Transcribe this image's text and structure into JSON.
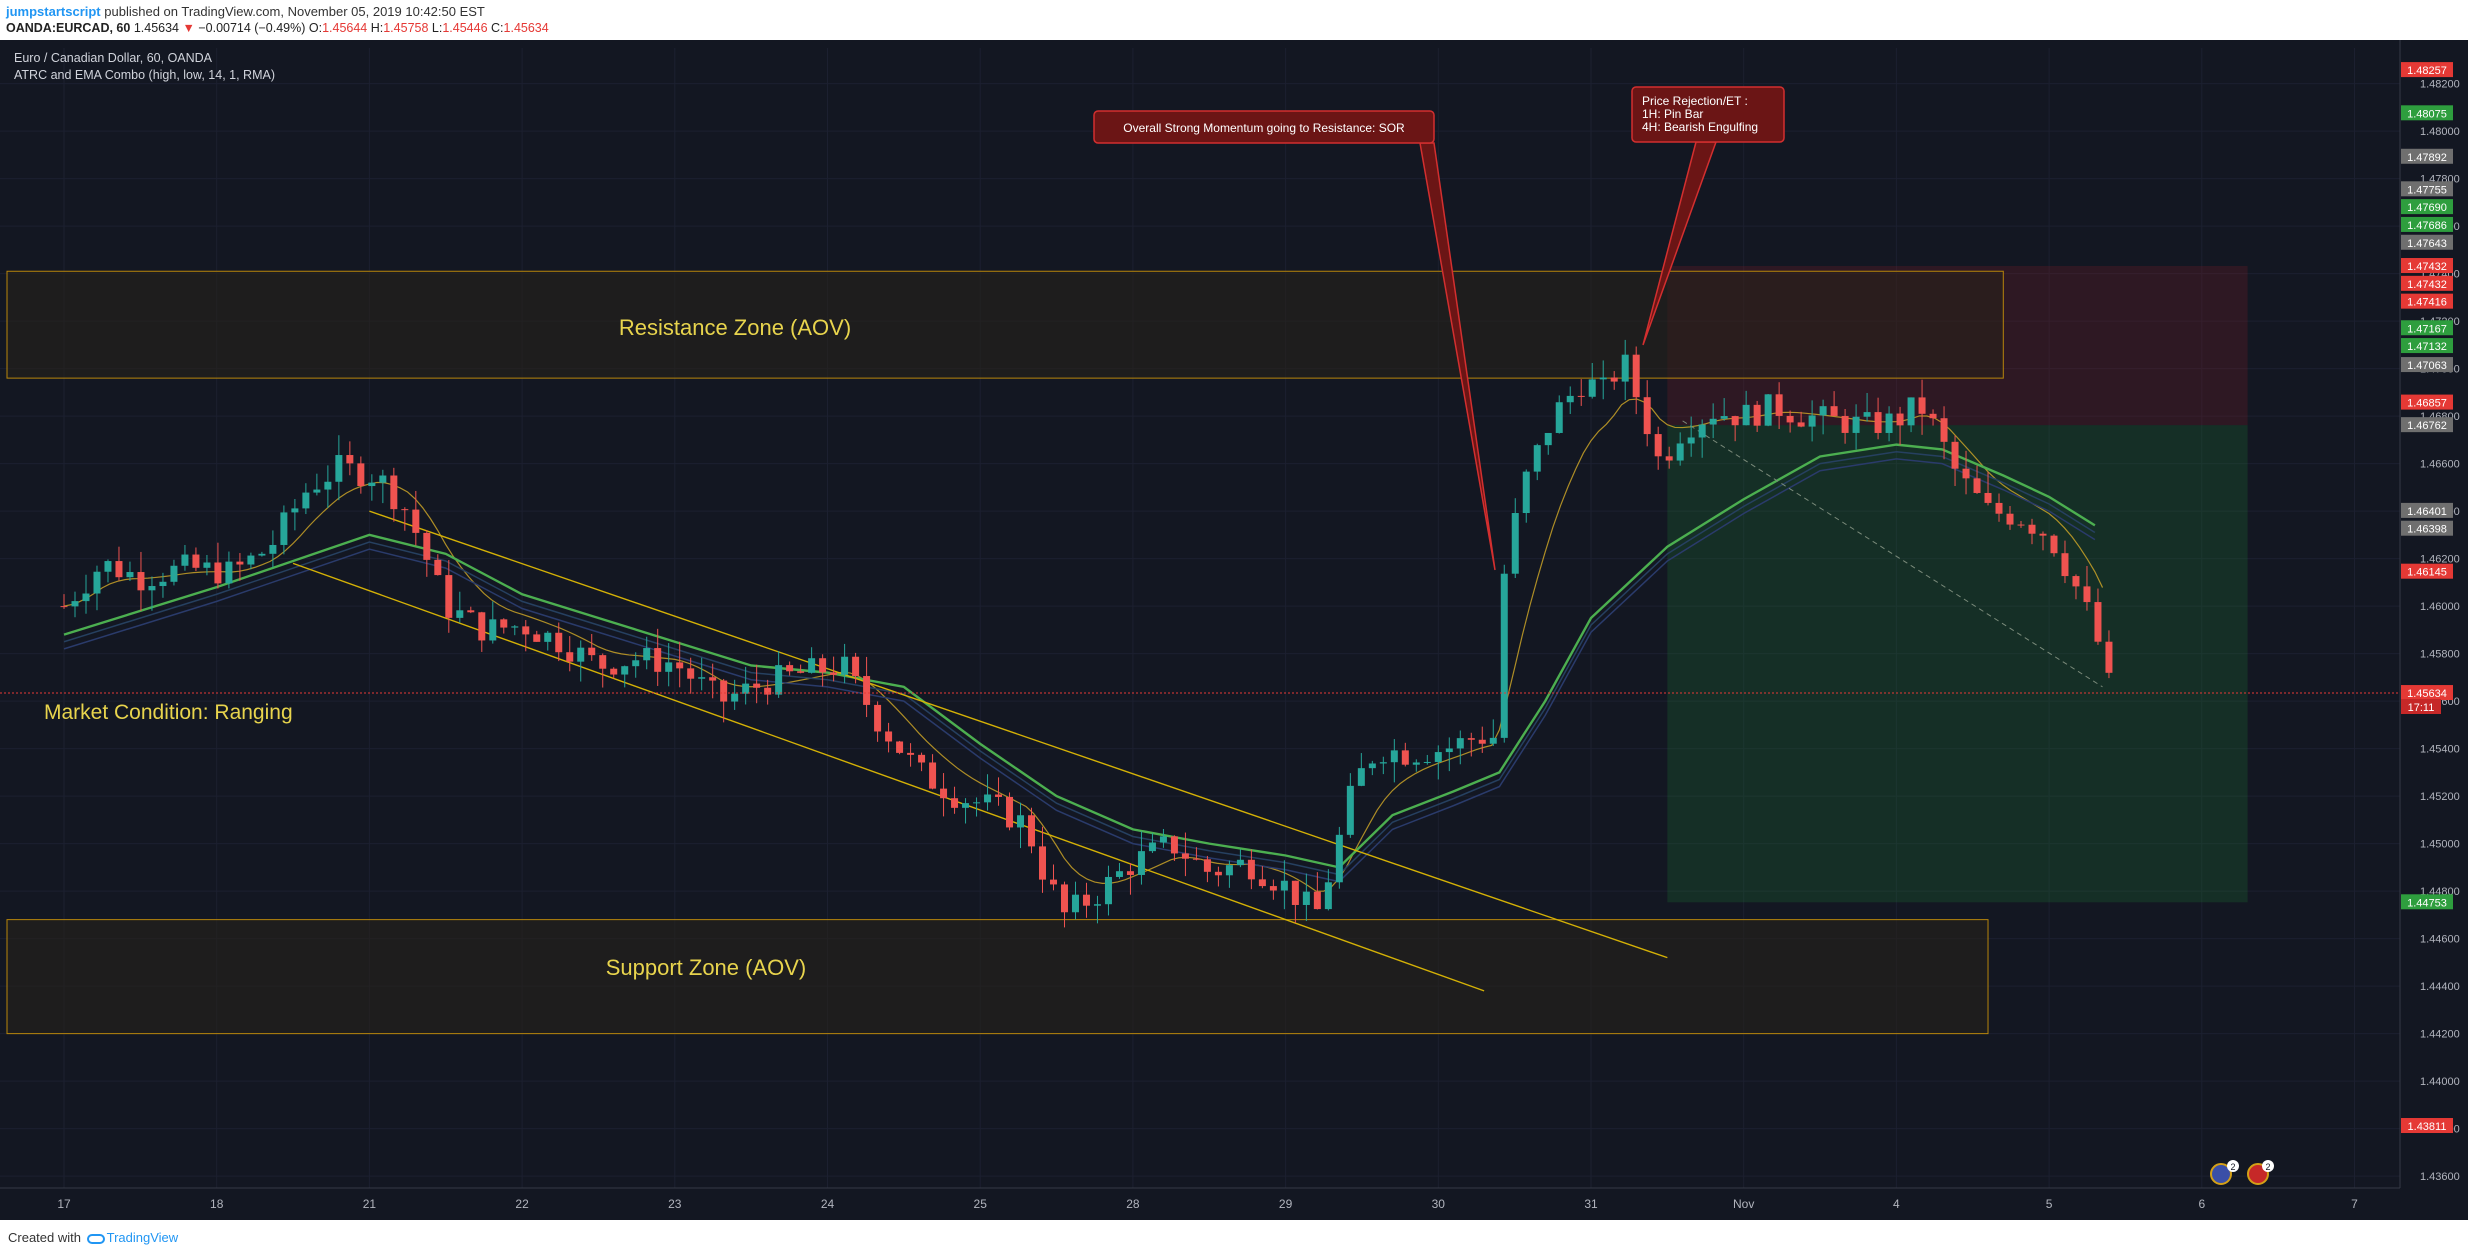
{
  "header": {
    "author": "jumpstartscript",
    "published_text": "published on TradingView.com, November 05, 2019 10:42:50 EST",
    "symbol": "OANDA:EURCAD, 60",
    "last_price": "1.45634",
    "change_arrow": "▼",
    "change": "−0.00714 (−0.49%)",
    "o_label": "O:",
    "o_value": "1.45644",
    "h_label": "H:",
    "h_value": "1.45758",
    "l_label": "L:",
    "l_value": "1.45446",
    "c_label": "C:",
    "c_value": "1.45634"
  },
  "legend": {
    "title": "Euro / Canadian Dollar, 60, OANDA",
    "indicator": "ATRC and EMA Combo (high, low, 14, 1, RMA)"
  },
  "zones": {
    "resistance": "Resistance Zone (AOV)",
    "support": "Support Zone (AOV)",
    "market_condition": "Market Condition: Ranging"
  },
  "callouts": {
    "momentum": "Overall Strong Momentum going to Resistance: SOR",
    "rejection_title": "Price Rejection/ET :",
    "rejection_1h": "1H: Pin Bar",
    "rejection_4h": "4H: Bearish Engulfing"
  },
  "countdown": "17:11",
  "badges": {
    "ideas_count": "2",
    "alerts_count": "2"
  },
  "footer": {
    "created_with": "Created with",
    "brand": "TradingView"
  },
  "colors": {
    "background": "#131722",
    "bull": "#26a69a",
    "bear": "#ef5350",
    "ema": "#4caf50",
    "trendline": "#d4b106",
    "zone_border": "#b8860b",
    "zone_text": "#e8d44d",
    "callout_fill": "#6b1515",
    "callout_border": "#d32f2f"
  },
  "chart_data": {
    "type": "candlestick",
    "symbol": "EURCAD",
    "timeframe": "60",
    "ylim": [
      1.4355,
      1.4835
    ],
    "y_ticks": [
      1.482,
      1.48,
      1.478,
      1.476,
      1.474,
      1.472,
      1.47,
      1.468,
      1.466,
      1.464,
      1.462,
      1.46,
      1.458,
      1.456,
      1.454,
      1.452,
      1.45,
      1.448,
      1.446,
      1.444,
      1.442,
      1.44,
      1.438,
      1.436
    ],
    "y_tick_labels": [
      "1.48200",
      "1.48000",
      "1.47800",
      "1.47600",
      "1.47400",
      "1.47200",
      "1.47000",
      "1.46800",
      "1.46600",
      "1.46400",
      "1.46200",
      "1.46000",
      "1.45800",
      "1.45600",
      "1.45400",
      "1.45200",
      "1.45000",
      "1.44800",
      "1.44600",
      "1.44400",
      "1.44200",
      "1.44000",
      "1.43800",
      "1.43600"
    ],
    "x_ticks": [
      {
        "label": "17",
        "day": 0
      },
      {
        "label": "18",
        "day": 1
      },
      {
        "label": "21",
        "day": 2
      },
      {
        "label": "22",
        "day": 3
      },
      {
        "label": "23",
        "day": 4
      },
      {
        "label": "24",
        "day": 5
      },
      {
        "label": "25",
        "day": 6
      },
      {
        "label": "28",
        "day": 7
      },
      {
        "label": "29",
        "day": 8
      },
      {
        "label": "30",
        "day": 9
      },
      {
        "label": "31",
        "day": 10
      },
      {
        "label": "Nov",
        "day": 11
      },
      {
        "label": "4",
        "day": 12
      },
      {
        "label": "5",
        "day": 13
      },
      {
        "label": "6",
        "day": 14
      },
      {
        "label": "7",
        "day": 15
      }
    ],
    "price_path": [
      [
        0.0,
        1.46
      ],
      [
        0.25,
        1.4618
      ],
      [
        0.5,
        1.4612
      ],
      [
        0.8,
        1.4616
      ],
      [
        1.1,
        1.4614
      ],
      [
        1.35,
        1.4625
      ],
      [
        1.6,
        1.465
      ],
      [
        1.8,
        1.4658
      ],
      [
        2.05,
        1.4655
      ],
      [
        2.25,
        1.464
      ],
      [
        2.5,
        1.46
      ],
      [
        2.75,
        1.459
      ],
      [
        3.0,
        1.4592
      ],
      [
        3.25,
        1.4585
      ],
      [
        3.5,
        1.4575
      ],
      [
        3.75,
        1.4578
      ],
      [
        4.0,
        1.4576
      ],
      [
        4.3,
        1.456
      ],
      [
        4.6,
        1.4568
      ],
      [
        4.85,
        1.4572
      ],
      [
        5.1,
        1.4575
      ],
      [
        5.35,
        1.455
      ],
      [
        5.6,
        1.453
      ],
      [
        5.85,
        1.452
      ],
      [
        6.1,
        1.4515
      ],
      [
        6.3,
        1.4508
      ],
      [
        6.4,
        1.449
      ],
      [
        6.55,
        1.447
      ],
      [
        6.75,
        1.4478
      ],
      [
        7.0,
        1.4492
      ],
      [
        7.25,
        1.45
      ],
      [
        7.5,
        1.4488
      ],
      [
        7.75,
        1.4492
      ],
      [
        8.0,
        1.4482
      ],
      [
        8.2,
        1.447
      ],
      [
        8.3,
        1.449
      ],
      [
        8.45,
        1.4525
      ],
      [
        8.6,
        1.454
      ],
      [
        8.8,
        1.4538
      ],
      [
        9.05,
        1.454
      ],
      [
        9.25,
        1.4545
      ],
      [
        9.38,
        1.4545
      ],
      [
        9.42,
        1.461
      ],
      [
        9.55,
        1.465
      ],
      [
        9.75,
        1.468
      ],
      [
        9.95,
        1.4695
      ],
      [
        10.1,
        1.469
      ],
      [
        10.2,
        1.4705
      ],
      [
        10.35,
        1.468
      ],
      [
        10.45,
        1.466
      ],
      [
        10.6,
        1.4675
      ],
      [
        10.8,
        1.4682
      ],
      [
        11.0,
        1.468
      ],
      [
        11.2,
        1.4684
      ],
      [
        11.4,
        1.468
      ],
      [
        11.6,
        1.4678
      ],
      [
        11.8,
        1.4676
      ],
      [
        12.0,
        1.4678
      ],
      [
        12.15,
        1.4685
      ],
      [
        12.25,
        1.4675
      ],
      [
        12.4,
        1.4655
      ],
      [
        12.6,
        1.464
      ],
      [
        12.8,
        1.4638
      ],
      [
        13.0,
        1.463
      ],
      [
        13.15,
        1.4612
      ],
      [
        13.3,
        1.459
      ],
      [
        13.4,
        1.4565
      ]
    ],
    "ema_slow": [
      [
        0.0,
        1.4588
      ],
      [
        1.0,
        1.4608
      ],
      [
        2.0,
        1.463
      ],
      [
        2.5,
        1.4622
      ],
      [
        3.0,
        1.4605
      ],
      [
        3.5,
        1.4595
      ],
      [
        4.0,
        1.4585
      ],
      [
        4.5,
        1.4575
      ],
      [
        5.0,
        1.4572
      ],
      [
        5.5,
        1.4566
      ],
      [
        6.0,
        1.4542
      ],
      [
        6.5,
        1.452
      ],
      [
        7.0,
        1.4506
      ],
      [
        7.5,
        1.45
      ],
      [
        8.0,
        1.4495
      ],
      [
        8.35,
        1.449
      ],
      [
        8.7,
        1.4512
      ],
      [
        9.1,
        1.4522
      ],
      [
        9.4,
        1.453
      ],
      [
        9.7,
        1.456
      ],
      [
        10.0,
        1.4595
      ],
      [
        10.5,
        1.4625
      ],
      [
        11.0,
        1.4645
      ],
      [
        11.5,
        1.4663
      ],
      [
        12.0,
        1.4668
      ],
      [
        12.3,
        1.4666
      ],
      [
        12.7,
        1.4655
      ],
      [
        13.0,
        1.4646
      ],
      [
        13.3,
        1.4634
      ]
    ],
    "resistance_zone": {
      "from_day": 0.0,
      "to_day": 12.7,
      "y_top": 1.4741,
      "y_bottom": 1.4696
    },
    "support_zone": {
      "from_day": 0.0,
      "to_day": 12.6,
      "y_top": 1.4468,
      "y_bottom": 1.442
    },
    "trendlines": [
      {
        "from": [
          2.0,
          1.464
        ],
        "to": [
          10.5,
          1.4452
        ]
      },
      {
        "from": [
          1.5,
          1.4618
        ],
        "to": [
          9.3,
          1.4438
        ]
      }
    ],
    "position": {
      "from_day": 10.5,
      "to_day": 14.3,
      "entry": 1.46762,
      "stop": 1.47432,
      "target": 1.44753
    },
    "price_labels": [
      {
        "value": "1.48257",
        "y": 1.48257,
        "color": "#e53935"
      },
      {
        "value": "1.48075",
        "y": 1.48075,
        "color": "#2e9e3e"
      },
      {
        "value": "1.47892",
        "y": 1.47892,
        "color": "#6f6f6f"
      },
      {
        "value": "1.47755",
        "y": 1.47755,
        "color": "#6f6f6f"
      },
      {
        "value": "1.47690",
        "y": 1.4768,
        "color": "#2e9e3e"
      },
      {
        "value": "1.47686",
        "y": 1.47605,
        "color": "#2e9e3e"
      },
      {
        "value": "1.47643",
        "y": 1.4753,
        "color": "#6f6f6f"
      },
      {
        "value": "1.47432",
        "y": 1.47432,
        "color": "#e53935"
      },
      {
        "value": "1.47432",
        "y": 1.47357,
        "color": "#e53935"
      },
      {
        "value": "1.47416",
        "y": 1.47282,
        "color": "#e53935"
      },
      {
        "value": "1.47167",
        "y": 1.4717,
        "color": "#2e9e3e"
      },
      {
        "value": "1.47132",
        "y": 1.47095,
        "color": "#2e9e3e"
      },
      {
        "value": "1.47063",
        "y": 1.47015,
        "color": "#6f6f6f"
      },
      {
        "value": "1.46857",
        "y": 1.46857,
        "color": "#e53935"
      },
      {
        "value": "1.46762",
        "y": 1.46762,
        "color": "#6f6f6f"
      },
      {
        "value": "1.46401",
        "y": 1.46401,
        "color": "#6f6f6f"
      },
      {
        "value": "1.46398",
        "y": 1.46326,
        "color": "#6f6f6f"
      },
      {
        "value": "1.46145",
        "y": 1.46145,
        "color": "#e53935"
      },
      {
        "value": "1.45634",
        "y": 1.45634,
        "color": "#e53935"
      },
      {
        "value": "1.44753",
        "y": 1.44753,
        "color": "#2e9e3e"
      },
      {
        "value": "1.43811",
        "y": 1.43811,
        "color": "#e53935"
      }
    ]
  }
}
